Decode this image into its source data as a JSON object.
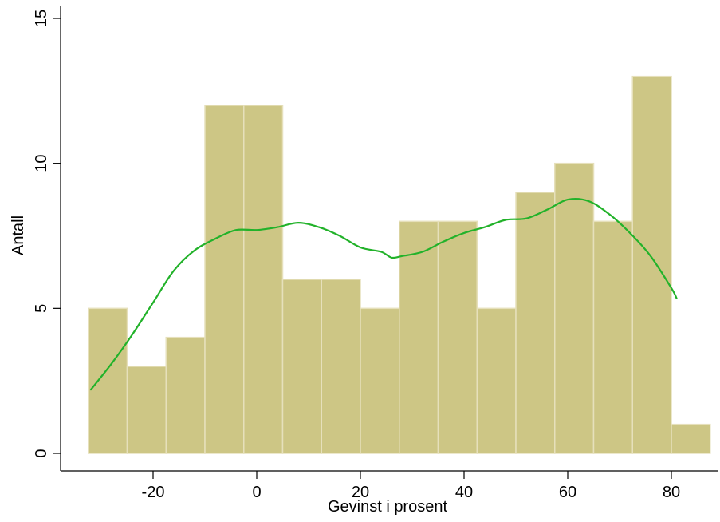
{
  "chart_data": {
    "type": "bar",
    "xlabel": "Gevinst i prosent",
    "ylabel": "Antall",
    "xlim": [
      -33.5,
      89
    ],
    "ylim": [
      0,
      15
    ],
    "x_ticks": [
      "-20",
      "0",
      "20",
      "40",
      "60",
      "80"
    ],
    "y_ticks": [
      "0",
      "5",
      "10",
      "15"
    ],
    "grid": false,
    "bins": [
      {
        "start": -32.5,
        "end": -25.0,
        "value": 5
      },
      {
        "start": -25.0,
        "end": -17.5,
        "value": 3
      },
      {
        "start": -17.5,
        "end": -10.0,
        "value": 4
      },
      {
        "start": -10.0,
        "end": -2.5,
        "value": 12
      },
      {
        "start": -2.5,
        "end": 5.0,
        "value": 12
      },
      {
        "start": 5.0,
        "end": 12.5,
        "value": 6
      },
      {
        "start": 12.5,
        "end": 20.0,
        "value": 6
      },
      {
        "start": 20.0,
        "end": 27.5,
        "value": 5
      },
      {
        "start": 27.5,
        "end": 35.0,
        "value": 8
      },
      {
        "start": 35.0,
        "end": 42.5,
        "value": 8
      },
      {
        "start": 42.5,
        "end": 50.0,
        "value": 5
      },
      {
        "start": 50.0,
        "end": 57.5,
        "value": 9
      },
      {
        "start": 57.5,
        "end": 65.0,
        "value": 10
      },
      {
        "start": 65.0,
        "end": 72.5,
        "value": 8
      },
      {
        "start": 72.5,
        "end": 80.0,
        "value": 13
      },
      {
        "start": 80.0,
        "end": 87.5,
        "value": 1
      }
    ],
    "density_curve": {
      "x": [
        -32,
        -28,
        -24,
        -20,
        -16,
        -12,
        -8,
        -4,
        0,
        4,
        8,
        12,
        16,
        20,
        24,
        26,
        28,
        32,
        36,
        40,
        44,
        48,
        52,
        56,
        60,
        64,
        68,
        72,
        76,
        80,
        81
      ],
      "y": [
        2.2,
        3.1,
        4.1,
        5.2,
        6.3,
        7.0,
        7.4,
        7.7,
        7.7,
        7.8,
        7.95,
        7.8,
        7.5,
        7.1,
        6.95,
        6.75,
        6.8,
        6.95,
        7.3,
        7.6,
        7.8,
        8.05,
        8.1,
        8.4,
        8.75,
        8.7,
        8.25,
        7.6,
        6.8,
        5.7,
        5.35
      ]
    },
    "colors": {
      "bar_fill": "#cdc685",
      "bar_edge": "#e6e0bb",
      "curve": "#22b22a"
    }
  }
}
